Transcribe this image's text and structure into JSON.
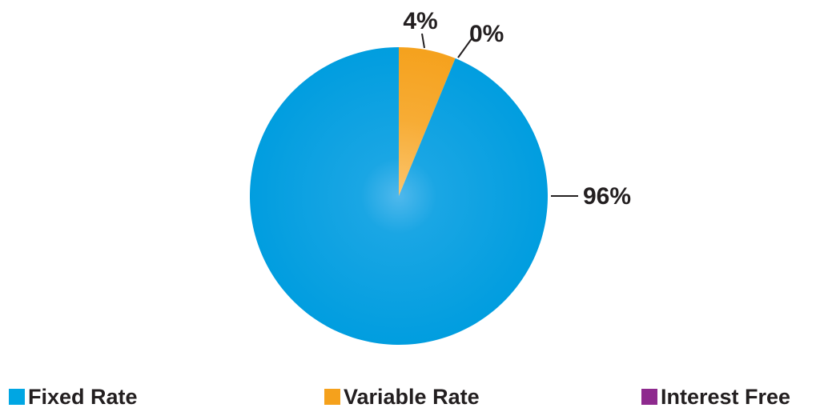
{
  "chart_data": {
    "type": "pie",
    "slices": [
      {
        "name": "Fixed Rate",
        "value": 96,
        "label": "96%",
        "color": "#009ddf"
      },
      {
        "name": "Variable Rate",
        "value": 4,
        "label": "4%",
        "color": "#f5a11c"
      },
      {
        "name": "Interest Free",
        "value": 0,
        "label": "0%",
        "color": "#8e2a8e"
      }
    ],
    "legend_placement": "bottom"
  },
  "legend": {
    "items": [
      {
        "label": "Fixed Rate",
        "color": "#009ddf"
      },
      {
        "label": "Variable Rate",
        "color": "#f5a11c"
      },
      {
        "label": "Interest Free",
        "color": "#8e2a8e"
      }
    ]
  }
}
